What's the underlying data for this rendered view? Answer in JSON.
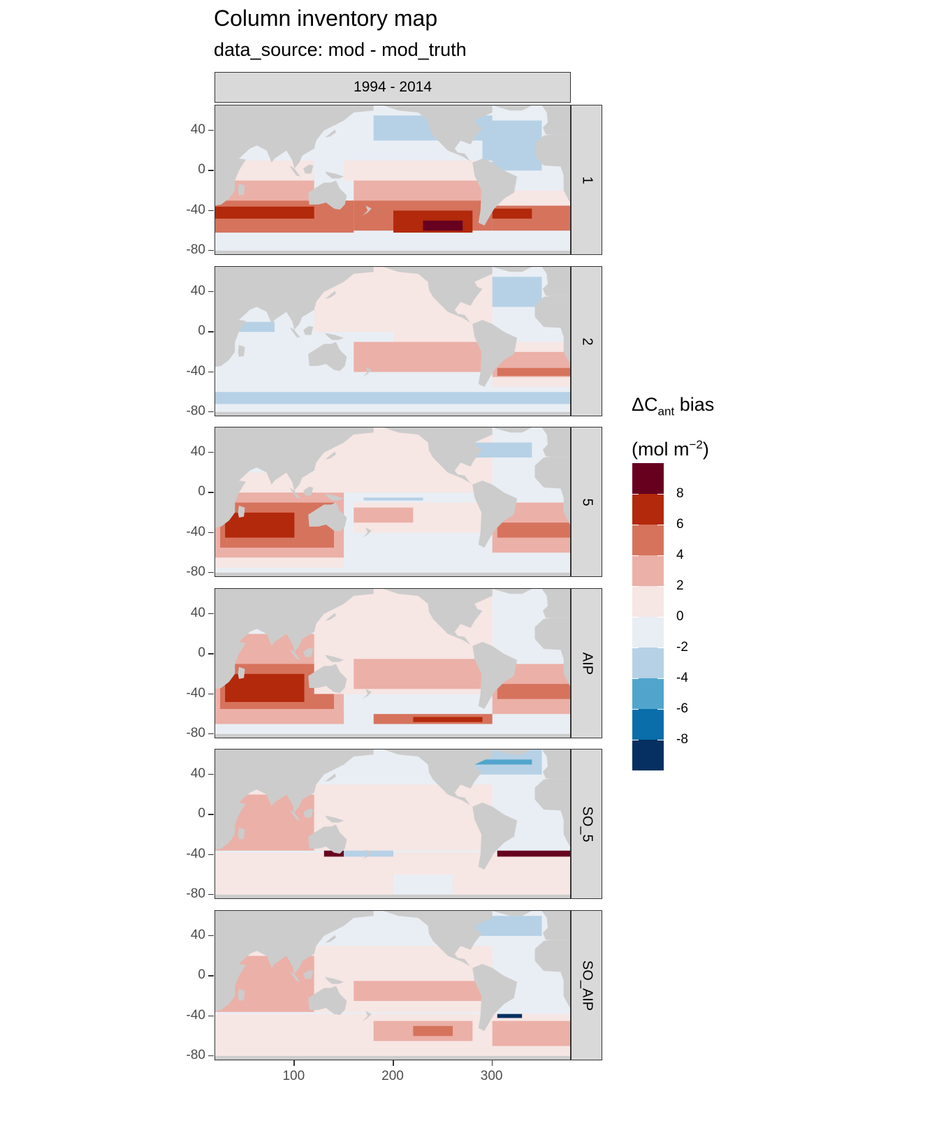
{
  "title": "Column inventory map",
  "subtitle": "data_source: mod - mod_truth",
  "column_strip": "1994 - 2014",
  "panels": [
    {
      "label": "1"
    },
    {
      "label": "2"
    },
    {
      "label": "5"
    },
    {
      "label": "AIP"
    },
    {
      "label": "SO_5"
    },
    {
      "label": "SO_AIP"
    }
  ],
  "legend": {
    "title_main": "ΔC",
    "title_sub": "ant",
    "title_rest": " bias",
    "units_open": "(mol m",
    "units_sup": "−2",
    "units_close": ")",
    "bins": [
      {
        "range": "above 8",
        "color": "#67001f"
      },
      {
        "range": "6 to 8",
        "color": "#b2290b"
      },
      {
        "range": "4 to 6",
        "color": "#d6735d"
      },
      {
        "range": "2 to 4",
        "color": "#ebb0a7"
      },
      {
        "range": "0 to 2",
        "color": "#f6e6e4"
      },
      {
        "range": "-2 to 0",
        "color": "#e9eef4"
      },
      {
        "range": "-4 to -2",
        "color": "#b6d1e6"
      },
      {
        "range": "-6 to -4",
        "color": "#51a5cc"
      },
      {
        "range": "-8 to -6",
        "color": "#0a6eaa"
      },
      {
        "range": "below -8",
        "color": "#053061"
      }
    ],
    "tick_labels": [
      "8",
      "6",
      "4",
      "2",
      "0",
      "-2",
      "-4",
      "-6",
      "-8"
    ]
  },
  "chart_data": {
    "type": "heatmap",
    "title": "Column inventory map",
    "subtitle": "data_source: mod - mod_truth",
    "facet_column": "1994 - 2014",
    "facet_rows": [
      "1",
      "2",
      "5",
      "AIP",
      "SO_5",
      "SO_AIP"
    ],
    "x_ticks": [
      100,
      200,
      300
    ],
    "y_ticks": [
      40,
      0,
      -40,
      -80
    ],
    "xlim": [
      20,
      380
    ],
    "ylim": [
      -85,
      65
    ],
    "land_color": "#cccccc",
    "legend_title": "ΔCant bias (mol m−2)",
    "legend_breaks": [
      -8,
      -6,
      -4,
      -2,
      0,
      2,
      4,
      6,
      8
    ]
  }
}
